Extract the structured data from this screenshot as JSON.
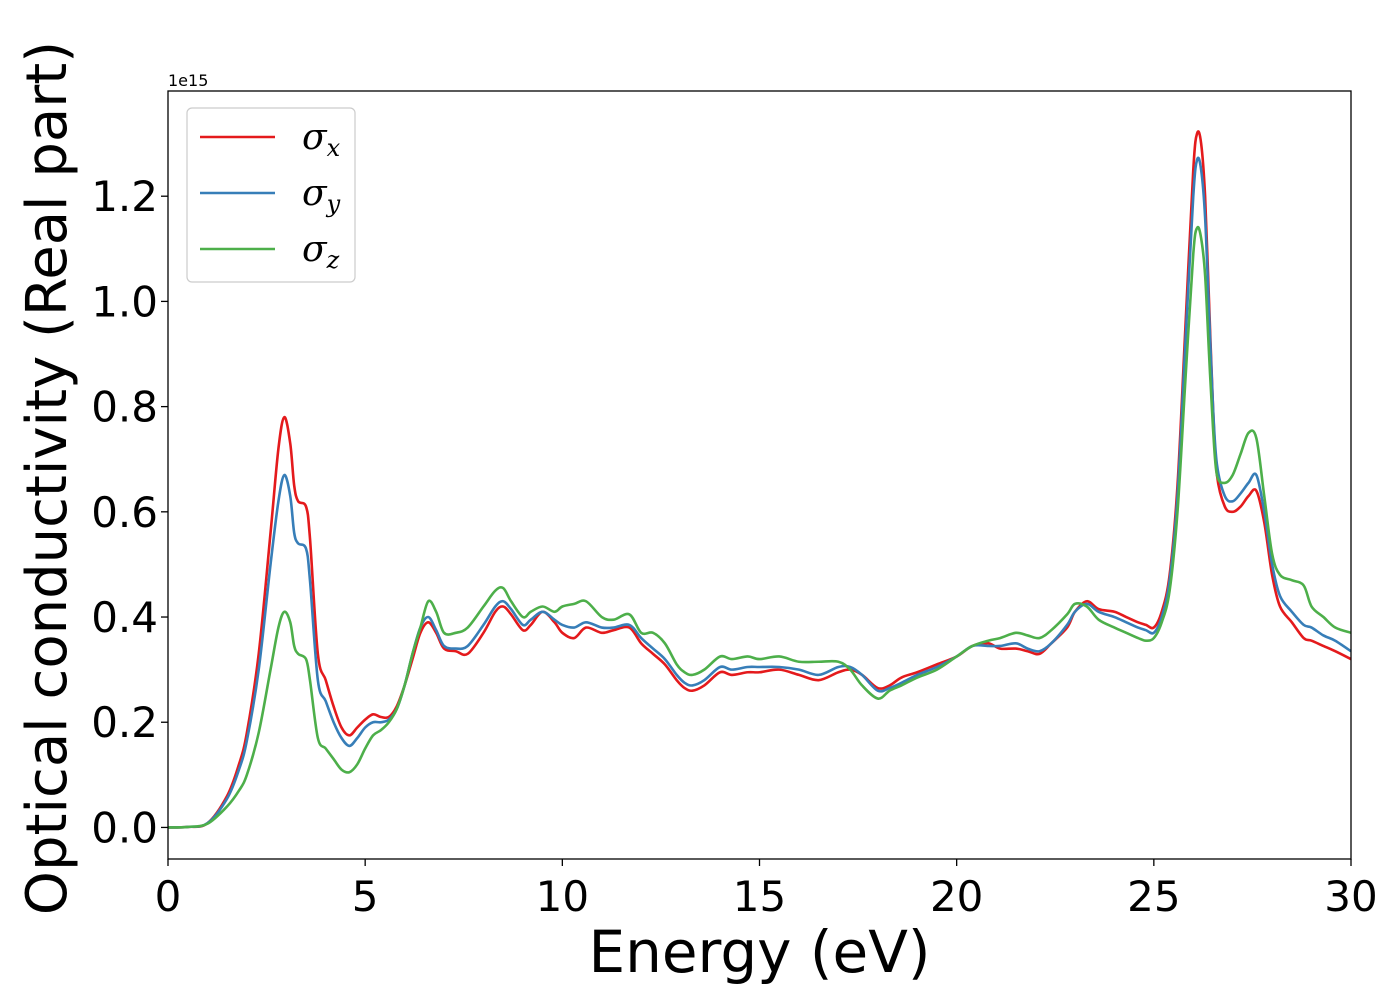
{
  "chart_data": {
    "type": "line",
    "xlabel": "Energy (eV)",
    "ylabel": "Optical conductivity (Real part)",
    "y_offset_text": "1e15",
    "xlim": [
      0,
      30
    ],
    "ylim": [
      -0.06,
      1.4
    ],
    "x_ticks": [
      0,
      5,
      10,
      15,
      20,
      25,
      30
    ],
    "y_ticks": [
      0.0,
      0.2,
      0.4,
      0.6,
      0.8,
      1.0,
      1.2
    ],
    "grid": false,
    "legend_position": "top-left",
    "series": [
      {
        "name": "σx",
        "symbol": "σ",
        "subscript": "x",
        "color": "#e41a1c",
        "x": [
          0,
          0.5,
          1,
          1.5,
          1.8,
          2,
          2.3,
          2.6,
          2.8,
          2.95,
          3.1,
          3.2,
          3.3,
          3.5,
          3.6,
          3.8,
          4,
          4.2,
          4.4,
          4.6,
          4.8,
          5,
          5.2,
          5.4,
          5.6,
          5.8,
          6,
          6.2,
          6.4,
          6.6,
          6.8,
          7,
          7.3,
          7.6,
          8,
          8.3,
          8.5,
          8.7,
          9,
          9.2,
          9.5,
          9.8,
          10,
          10.3,
          10.6,
          11,
          11.3,
          11.7,
          12,
          12.3,
          12.6,
          12.9,
          13.1,
          13.3,
          13.6,
          14,
          14.3,
          14.7,
          15,
          15.5,
          16,
          16.5,
          17,
          17.3,
          17.6,
          18,
          18.3,
          18.6,
          19,
          19.5,
          20,
          20.4,
          20.8,
          21.1,
          21.5,
          21.8,
          22.1,
          22.4,
          22.8,
          23,
          23.3,
          23.6,
          24,
          24.3,
          24.6,
          24.8,
          25,
          25.2,
          25.4,
          25.6,
          25.8,
          26,
          26.1,
          26.2,
          26.3,
          26.4,
          26.5,
          26.6,
          26.8,
          27,
          27.2,
          27.4,
          27.6,
          27.8,
          28,
          28.2,
          28.5,
          28.8,
          29,
          29.3,
          29.6,
          30
        ],
        "values": [
          0,
          0.001,
          0.008,
          0.06,
          0.12,
          0.18,
          0.33,
          0.56,
          0.72,
          0.78,
          0.73,
          0.65,
          0.62,
          0.61,
          0.55,
          0.33,
          0.28,
          0.23,
          0.19,
          0.175,
          0.19,
          0.205,
          0.215,
          0.21,
          0.21,
          0.23,
          0.27,
          0.32,
          0.37,
          0.39,
          0.37,
          0.34,
          0.335,
          0.33,
          0.37,
          0.41,
          0.42,
          0.405,
          0.375,
          0.385,
          0.41,
          0.39,
          0.37,
          0.36,
          0.38,
          0.37,
          0.375,
          0.38,
          0.35,
          0.33,
          0.31,
          0.28,
          0.265,
          0.26,
          0.27,
          0.295,
          0.29,
          0.295,
          0.295,
          0.3,
          0.29,
          0.28,
          0.295,
          0.3,
          0.29,
          0.265,
          0.27,
          0.285,
          0.295,
          0.31,
          0.325,
          0.345,
          0.35,
          0.34,
          0.34,
          0.335,
          0.33,
          0.35,
          0.38,
          0.41,
          0.43,
          0.415,
          0.41,
          0.4,
          0.39,
          0.385,
          0.38,
          0.41,
          0.48,
          0.65,
          0.95,
          1.25,
          1.32,
          1.3,
          1.2,
          1.0,
          0.8,
          0.67,
          0.61,
          0.6,
          0.61,
          0.63,
          0.64,
          0.58,
          0.48,
          0.42,
          0.39,
          0.36,
          0.355,
          0.345,
          0.335,
          0.32
        ]
      },
      {
        "name": "σy",
        "symbol": "σ",
        "subscript": "y",
        "color": "#377eb8",
        "x": [
          0,
          0.5,
          1,
          1.5,
          1.8,
          2,
          2.3,
          2.6,
          2.8,
          2.95,
          3.1,
          3.2,
          3.3,
          3.5,
          3.6,
          3.8,
          4,
          4.2,
          4.4,
          4.6,
          4.8,
          5,
          5.2,
          5.4,
          5.6,
          5.8,
          6,
          6.2,
          6.4,
          6.6,
          6.8,
          7,
          7.3,
          7.6,
          8,
          8.3,
          8.5,
          8.7,
          9,
          9.2,
          9.5,
          9.8,
          10,
          10.3,
          10.6,
          11,
          11.3,
          11.7,
          12,
          12.3,
          12.6,
          12.9,
          13.1,
          13.3,
          13.6,
          14,
          14.3,
          14.7,
          15,
          15.5,
          16,
          16.5,
          17,
          17.3,
          17.6,
          18,
          18.3,
          18.6,
          19,
          19.5,
          20,
          20.4,
          20.8,
          21.1,
          21.5,
          21.8,
          22.1,
          22.4,
          22.8,
          23,
          23.3,
          23.6,
          24,
          24.3,
          24.6,
          24.8,
          25,
          25.2,
          25.4,
          25.6,
          25.8,
          26,
          26.1,
          26.2,
          26.3,
          26.4,
          26.5,
          26.6,
          26.8,
          27,
          27.2,
          27.4,
          27.6,
          27.8,
          28,
          28.2,
          28.5,
          28.8,
          29,
          29.3,
          29.6,
          30
        ],
        "values": [
          0,
          0.001,
          0.008,
          0.055,
          0.11,
          0.165,
          0.3,
          0.5,
          0.62,
          0.67,
          0.63,
          0.56,
          0.54,
          0.53,
          0.47,
          0.28,
          0.24,
          0.2,
          0.17,
          0.155,
          0.17,
          0.19,
          0.2,
          0.2,
          0.205,
          0.225,
          0.27,
          0.33,
          0.38,
          0.4,
          0.375,
          0.345,
          0.34,
          0.345,
          0.385,
          0.42,
          0.43,
          0.415,
          0.385,
          0.395,
          0.41,
          0.395,
          0.385,
          0.38,
          0.39,
          0.38,
          0.38,
          0.385,
          0.36,
          0.34,
          0.32,
          0.29,
          0.275,
          0.27,
          0.28,
          0.305,
          0.3,
          0.305,
          0.305,
          0.305,
          0.3,
          0.29,
          0.305,
          0.305,
          0.29,
          0.26,
          0.265,
          0.275,
          0.29,
          0.305,
          0.325,
          0.345,
          0.345,
          0.345,
          0.35,
          0.34,
          0.335,
          0.35,
          0.385,
          0.41,
          0.425,
          0.41,
          0.4,
          0.39,
          0.38,
          0.375,
          0.37,
          0.4,
          0.47,
          0.63,
          0.92,
          1.2,
          1.27,
          1.25,
          1.16,
          0.98,
          0.8,
          0.69,
          0.63,
          0.62,
          0.635,
          0.655,
          0.67,
          0.6,
          0.5,
          0.44,
          0.41,
          0.385,
          0.38,
          0.365,
          0.355,
          0.335
        ]
      },
      {
        "name": "σz",
        "symbol": "σ",
        "subscript": "z",
        "color": "#4daf4a",
        "x": [
          0,
          0.5,
          1,
          1.5,
          1.8,
          2,
          2.3,
          2.6,
          2.8,
          2.95,
          3.1,
          3.2,
          3.3,
          3.5,
          3.6,
          3.8,
          4,
          4.2,
          4.4,
          4.6,
          4.8,
          5,
          5.2,
          5.4,
          5.6,
          5.8,
          6,
          6.2,
          6.4,
          6.6,
          6.8,
          7,
          7.3,
          7.6,
          8,
          8.3,
          8.5,
          8.7,
          9,
          9.2,
          9.5,
          9.8,
          10,
          10.3,
          10.6,
          11,
          11.3,
          11.7,
          12,
          12.3,
          12.6,
          12.9,
          13.1,
          13.3,
          13.6,
          14,
          14.3,
          14.7,
          15,
          15.5,
          16,
          16.5,
          17,
          17.3,
          17.6,
          18,
          18.3,
          18.6,
          19,
          19.5,
          20,
          20.4,
          20.8,
          21.1,
          21.5,
          21.8,
          22.1,
          22.4,
          22.8,
          23,
          23.3,
          23.6,
          24,
          24.3,
          24.6,
          24.8,
          25,
          25.2,
          25.4,
          25.6,
          25.8,
          26,
          26.1,
          26.2,
          26.3,
          26.4,
          26.5,
          26.6,
          26.8,
          27,
          27.2,
          27.4,
          27.6,
          27.8,
          28,
          28.2,
          28.5,
          28.8,
          29,
          29.3,
          29.6,
          30
        ],
        "values": [
          0,
          0.001,
          0.007,
          0.04,
          0.07,
          0.1,
          0.18,
          0.3,
          0.38,
          0.41,
          0.39,
          0.345,
          0.33,
          0.32,
          0.28,
          0.17,
          0.15,
          0.13,
          0.11,
          0.105,
          0.12,
          0.15,
          0.175,
          0.185,
          0.2,
          0.225,
          0.27,
          0.33,
          0.38,
          0.43,
          0.41,
          0.37,
          0.37,
          0.38,
          0.42,
          0.45,
          0.455,
          0.43,
          0.4,
          0.41,
          0.42,
          0.41,
          0.42,
          0.425,
          0.43,
          0.4,
          0.395,
          0.405,
          0.37,
          0.37,
          0.35,
          0.31,
          0.295,
          0.29,
          0.3,
          0.325,
          0.32,
          0.325,
          0.32,
          0.325,
          0.315,
          0.315,
          0.315,
          0.3,
          0.27,
          0.245,
          0.26,
          0.27,
          0.285,
          0.3,
          0.325,
          0.345,
          0.355,
          0.36,
          0.37,
          0.365,
          0.36,
          0.375,
          0.405,
          0.425,
          0.42,
          0.395,
          0.38,
          0.37,
          0.36,
          0.355,
          0.36,
          0.39,
          0.45,
          0.6,
          0.85,
          1.09,
          1.14,
          1.12,
          1.05,
          0.9,
          0.76,
          0.67,
          0.655,
          0.67,
          0.71,
          0.75,
          0.74,
          0.63,
          0.52,
          0.48,
          0.47,
          0.46,
          0.42,
          0.4,
          0.38,
          0.37
        ]
      }
    ]
  }
}
